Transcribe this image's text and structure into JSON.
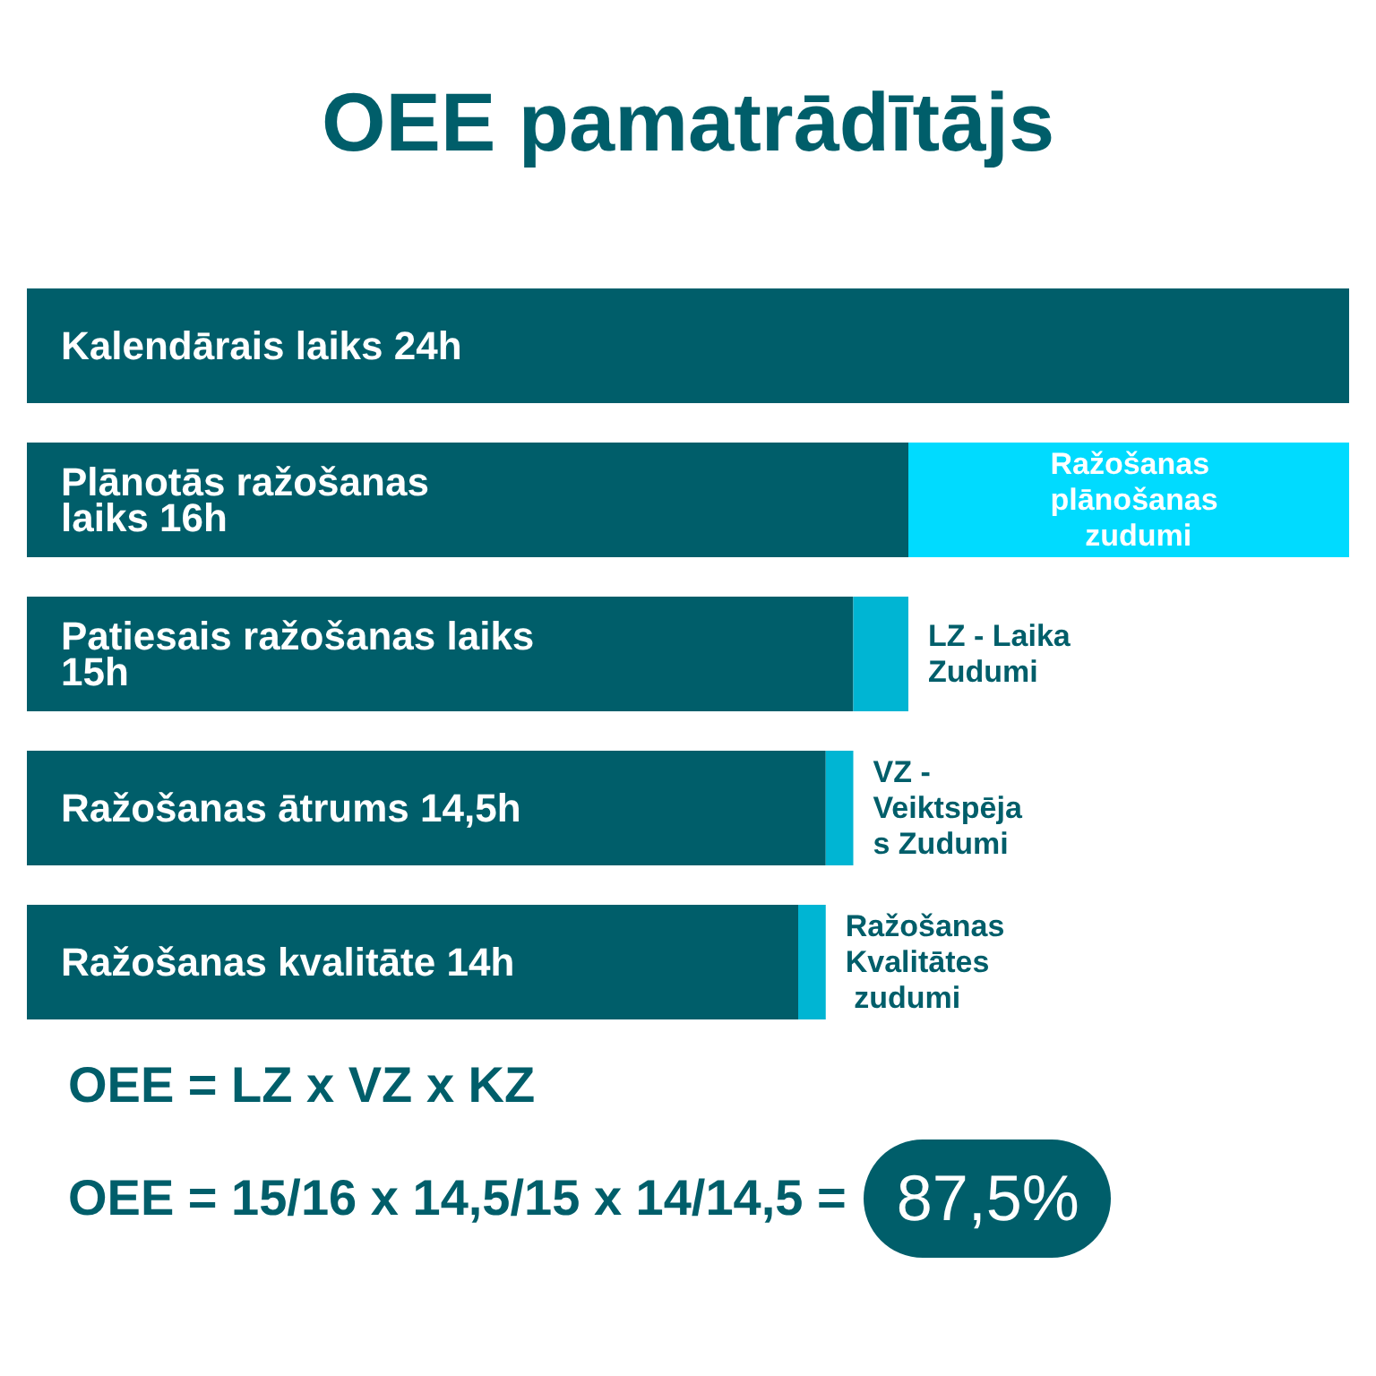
{
  "chart_data": {
    "type": "bar",
    "title": "OEE pamatrādītājs",
    "orientation": "horizontal",
    "stacked": true,
    "categories": [
      null,
      null,
      null,
      null,
      null
    ],
    "series": [
      {
        "color": "#005e6a",
        "values": [
          24,
          16,
          15,
          14.5,
          14
        ],
        "value_labels": [
          "Kalendārais laiks 24h",
          "Plānotās ražošanas laiks 16h",
          "Patiesais ražošanas laiks 15h",
          "Ražošanas ātrums 14,5h",
          "Ražošanas kvalitāte 14h"
        ]
      },
      {
        "colors": [
          "#00dbff",
          "#00dbff",
          "#00b5d3",
          "#00b5d3",
          "#00b5d3"
        ],
        "values": [
          null,
          8,
          1,
          0.5,
          0.5
        ],
        "value_labels": [
          null,
          "Ražošanas plānošanas zudumi",
          "LZ - Laika Zudumi",
          "VZ - Veiktspējas Zudumi",
          "Ražošanas Kvalitātes zudumi"
        ]
      }
    ],
    "xlim": [
      0,
      24
    ],
    "tick_labels": false,
    "annotations": [
      "OEE = LZ x VZ x KZ",
      "OEE = 15/16 x 14,5/15 x 14/14,5 =",
      "87,5%"
    ]
  }
}
